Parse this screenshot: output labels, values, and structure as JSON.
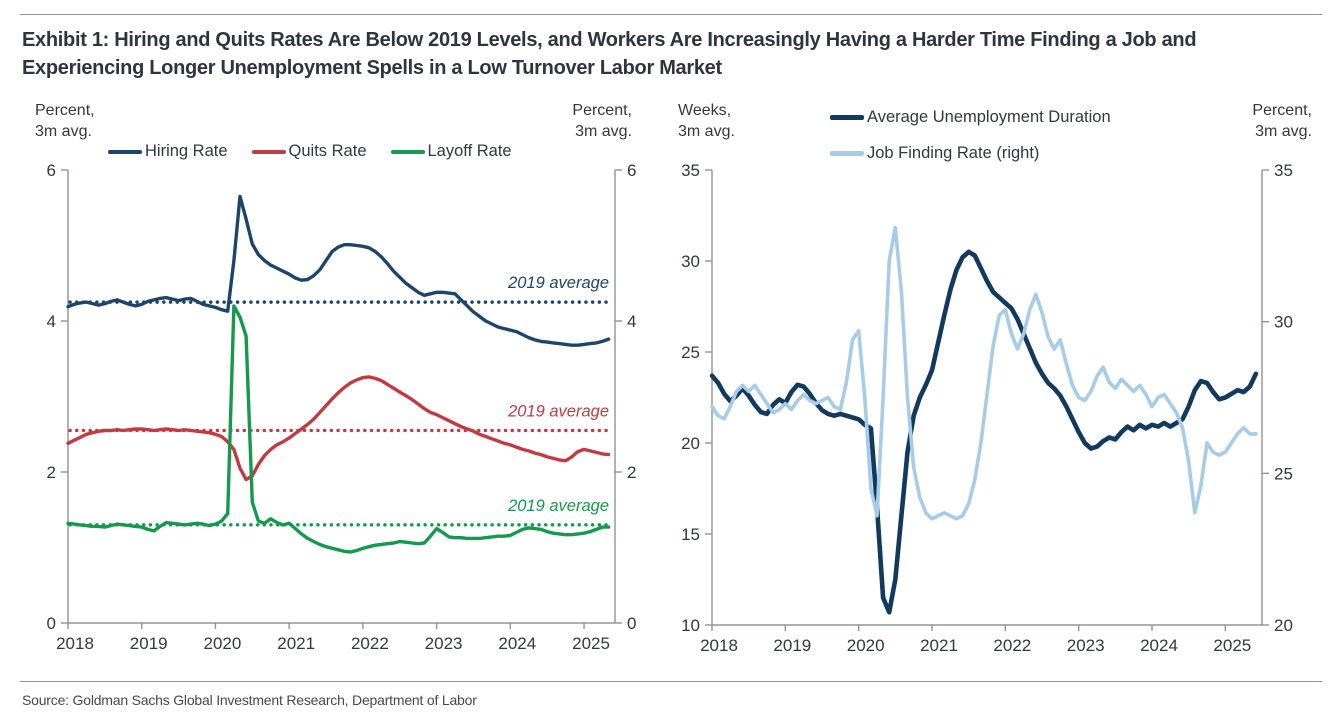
{
  "title": {
    "line1": "Exhibit 1: Hiring and Quits Rates Are Below 2019 Levels, and Workers Are Increasingly Having a Harder Time Finding a Job and",
    "line2": "Experiencing Longer Unemployment Spells in a Low Turnover Labor Market"
  },
  "source": "Source: Goldman Sachs Global Investment Research, Department of Labor",
  "colors": {
    "navy": "#1d456b",
    "dark_navy": "#123a5f",
    "red": "#c13b43",
    "green": "#15994d",
    "light_blue": "#a7cce9",
    "text": "#32383f",
    "axis": "#8f959b"
  },
  "chart_data": [
    {
      "type": "line",
      "id": "turnover",
      "y_axis_left": {
        "title_lines": [
          "Percent,",
          "3m avg."
        ],
        "min": 0,
        "max": 6,
        "ticks": [
          6,
          4,
          2,
          0
        ]
      },
      "y_axis_right": {
        "title_lines": [
          "Percent,",
          "3m avg."
        ],
        "min": 0,
        "max": 6,
        "ticks": [
          6,
          4,
          2,
          0
        ]
      },
      "x_axis": {
        "min": 2018,
        "max": 2025.42,
        "ticks": [
          2018,
          2019,
          2020,
          2021,
          2022,
          2023,
          2024,
          2025
        ]
      },
      "ref_lines": [
        {
          "label": "2019 average",
          "value": 4.25,
          "color": "navy"
        },
        {
          "label": "2019 average",
          "value": 2.55,
          "color": "red"
        },
        {
          "label": "2019 average",
          "value": 1.3,
          "color": "green"
        }
      ],
      "series": [
        {
          "name": "Hiring Rate",
          "color": "navy",
          "axis": "left",
          "width": 3.4,
          "x_start": 2018,
          "x_step": 0.08333,
          "values": [
            4.19,
            4.22,
            4.24,
            4.25,
            4.23,
            4.21,
            4.23,
            4.26,
            4.28,
            4.25,
            4.22,
            4.2,
            4.22,
            4.26,
            4.28,
            4.3,
            4.31,
            4.29,
            4.27,
            4.29,
            4.3,
            4.26,
            4.22,
            4.2,
            4.18,
            4.15,
            4.13,
            4.8,
            5.65,
            5.35,
            5.02,
            4.88,
            4.8,
            4.74,
            4.7,
            4.66,
            4.62,
            4.57,
            4.54,
            4.55,
            4.6,
            4.68,
            4.8,
            4.92,
            4.98,
            5.01,
            5.01,
            5.0,
            4.99,
            4.97,
            4.92,
            4.85,
            4.76,
            4.66,
            4.58,
            4.5,
            4.44,
            4.38,
            4.34,
            4.36,
            4.38,
            4.38,
            4.37,
            4.36,
            4.28,
            4.2,
            4.12,
            4.06,
            4.0,
            3.96,
            3.92,
            3.9,
            3.88,
            3.86,
            3.82,
            3.78,
            3.75,
            3.73,
            3.72,
            3.71,
            3.7,
            3.69,
            3.68,
            3.68,
            3.69,
            3.7,
            3.71,
            3.73,
            3.76
          ]
        },
        {
          "name": "Quits Rate",
          "color": "red",
          "axis": "left",
          "width": 3.4,
          "x_start": 2018,
          "x_step": 0.08333,
          "values": [
            2.38,
            2.42,
            2.46,
            2.5,
            2.52,
            2.54,
            2.55,
            2.55,
            2.56,
            2.55,
            2.56,
            2.57,
            2.57,
            2.56,
            2.55,
            2.56,
            2.57,
            2.56,
            2.55,
            2.56,
            2.55,
            2.54,
            2.53,
            2.52,
            2.5,
            2.47,
            2.4,
            2.3,
            2.05,
            1.9,
            1.95,
            2.1,
            2.22,
            2.3,
            2.36,
            2.4,
            2.45,
            2.51,
            2.57,
            2.63,
            2.7,
            2.79,
            2.88,
            2.97,
            3.05,
            3.12,
            3.18,
            3.22,
            3.25,
            3.26,
            3.24,
            3.21,
            3.16,
            3.11,
            3.06,
            3.01,
            2.96,
            2.9,
            2.84,
            2.79,
            2.76,
            2.72,
            2.68,
            2.64,
            2.6,
            2.57,
            2.54,
            2.5,
            2.47,
            2.44,
            2.41,
            2.38,
            2.36,
            2.33,
            2.3,
            2.28,
            2.25,
            2.23,
            2.2,
            2.18,
            2.16,
            2.15,
            2.2,
            2.27,
            2.3,
            2.28,
            2.26,
            2.24,
            2.23
          ]
        },
        {
          "name": "Layoff Rate",
          "color": "green",
          "axis": "left",
          "width": 3.4,
          "x_start": 2018,
          "x_step": 0.08333,
          "values": [
            1.32,
            1.31,
            1.3,
            1.29,
            1.28,
            1.28,
            1.27,
            1.29,
            1.31,
            1.3,
            1.29,
            1.28,
            1.27,
            1.24,
            1.22,
            1.28,
            1.33,
            1.32,
            1.31,
            1.3,
            1.31,
            1.32,
            1.31,
            1.29,
            1.31,
            1.35,
            1.45,
            4.2,
            4.05,
            3.8,
            1.6,
            1.35,
            1.32,
            1.38,
            1.33,
            1.3,
            1.32,
            1.25,
            1.18,
            1.12,
            1.08,
            1.04,
            1.01,
            0.99,
            0.97,
            0.95,
            0.94,
            0.96,
            0.99,
            1.01,
            1.03,
            1.04,
            1.05,
            1.06,
            1.08,
            1.07,
            1.06,
            1.05,
            1.06,
            1.15,
            1.25,
            1.2,
            1.14,
            1.13,
            1.13,
            1.12,
            1.12,
            1.12,
            1.13,
            1.14,
            1.15,
            1.15,
            1.16,
            1.2,
            1.24,
            1.26,
            1.25,
            1.24,
            1.21,
            1.19,
            1.18,
            1.17,
            1.17,
            1.18,
            1.19,
            1.21,
            1.24,
            1.27,
            1.27
          ]
        }
      ]
    },
    {
      "type": "line",
      "id": "duration",
      "y_axis_left": {
        "title_lines": [
          "Weeks,",
          "3m avg."
        ],
        "min": 10,
        "max": 35,
        "ticks": [
          35,
          30,
          25,
          20,
          15,
          10
        ]
      },
      "y_axis_right": {
        "title_lines": [
          "Percent,",
          "3m avg."
        ],
        "min": 20,
        "max": 35,
        "ticks": [
          35,
          30,
          25,
          20
        ]
      },
      "x_axis": {
        "min": 2018,
        "max": 2025.5,
        "ticks": [
          2018,
          2019,
          2020,
          2021,
          2022,
          2023,
          2024,
          2025
        ]
      },
      "ref_lines": [],
      "series": [
        {
          "name": "Average Unemployment Duration",
          "color": "dark_navy",
          "axis": "left",
          "width": 4.6,
          "x_start": 2018,
          "x_step": 0.08333,
          "values": [
            23.7,
            23.3,
            22.7,
            22.3,
            22.6,
            23.0,
            22.6,
            22.1,
            21.7,
            21.6,
            22.1,
            22.4,
            22.2,
            22.8,
            23.2,
            23.1,
            22.7,
            22.2,
            21.8,
            21.6,
            21.5,
            21.6,
            21.5,
            21.4,
            21.3,
            21.0,
            20.8,
            16.5,
            11.5,
            10.7,
            12.5,
            16.0,
            19.5,
            21.5,
            22.5,
            23.2,
            24.0,
            25.5,
            27.0,
            28.4,
            29.5,
            30.2,
            30.5,
            30.3,
            29.6,
            28.9,
            28.3,
            28.0,
            27.7,
            27.4,
            26.8,
            26.0,
            25.2,
            24.4,
            23.8,
            23.3,
            23.0,
            22.6,
            22.0,
            21.3,
            20.6,
            20.0,
            19.7,
            19.8,
            20.1,
            20.3,
            20.2,
            20.6,
            20.9,
            20.7,
            21.0,
            20.8,
            21.0,
            20.9,
            21.1,
            20.9,
            21.1,
            21.3,
            22.0,
            22.9,
            23.4,
            23.3,
            22.8,
            22.4,
            22.5,
            22.7,
            22.9,
            22.8,
            23.1,
            23.8
          ]
        },
        {
          "name": "Job Finding Rate (right)",
          "color": "light_blue",
          "axis": "right",
          "width": 3.6,
          "x_start": 2018,
          "x_step": 0.08333,
          "values": [
            27.2,
            26.9,
            26.8,
            27.2,
            27.7,
            27.9,
            27.7,
            27.9,
            27.6,
            27.3,
            27.0,
            27.1,
            27.3,
            27.1,
            27.4,
            27.6,
            27.4,
            27.3,
            27.4,
            27.5,
            27.2,
            27.1,
            28.0,
            29.4,
            29.7,
            27.5,
            24.5,
            23.6,
            27.5,
            32.0,
            33.1,
            31.0,
            27.5,
            25.2,
            24.2,
            23.7,
            23.5,
            23.6,
            23.7,
            23.6,
            23.5,
            23.6,
            24.0,
            24.8,
            26.0,
            27.6,
            29.2,
            30.2,
            30.4,
            29.6,
            29.1,
            29.6,
            30.4,
            30.9,
            30.3,
            29.5,
            29.1,
            29.4,
            28.6,
            27.9,
            27.5,
            27.4,
            27.7,
            28.2,
            28.5,
            28.0,
            27.8,
            28.1,
            27.9,
            27.7,
            27.9,
            27.6,
            27.2,
            27.5,
            27.6,
            27.3,
            27.0,
            26.5,
            25.4,
            23.7,
            24.6,
            26.0,
            25.7,
            25.6,
            25.7,
            26.0,
            26.3,
            26.5,
            26.3,
            26.3
          ]
        }
      ]
    }
  ]
}
